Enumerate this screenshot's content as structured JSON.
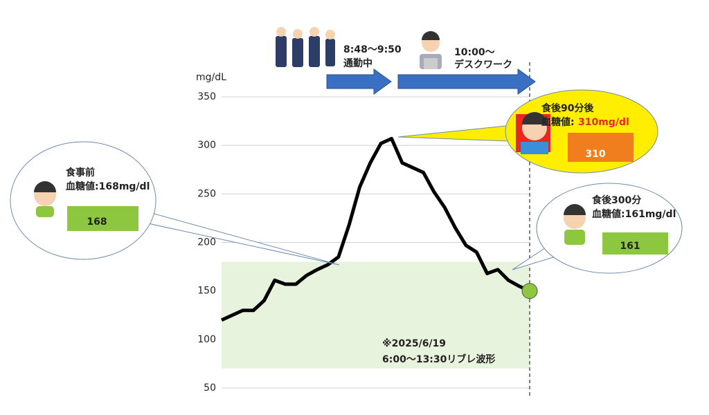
{
  "chart_data": {
    "type": "line",
    "y_label": "mg/dL",
    "categories": [
      null,
      null,
      null,
      null,
      null,
      null,
      null,
      null,
      null,
      null,
      null,
      null,
      null,
      null,
      null,
      null,
      null,
      null,
      null,
      null,
      null,
      null,
      null,
      null,
      null,
      null,
      null,
      null,
      null,
      null
    ],
    "values": [
      120,
      125,
      130,
      130,
      140,
      161,
      157,
      157,
      166,
      172,
      177,
      185,
      218,
      257,
      282,
      302,
      307,
      282,
      277,
      272,
      252,
      236,
      215,
      197,
      190,
      168,
      172,
      161,
      155,
      150
    ],
    "color": "#000000",
    "ylim": [
      50,
      350
    ],
    "yticks": [
      50,
      100,
      150,
      200,
      250,
      300,
      350
    ],
    "grid": true,
    "target_range": [
      70,
      180
    ],
    "target_color": "#e8f3dd",
    "end_marker_color": "#8dc63f",
    "note": [
      "※2025/6/19",
      "6:00～13:30リブレ波形"
    ],
    "timeline": [
      {
        "time": "8:48～9:50",
        "label": "通勤中"
      },
      {
        "time": "10:00～",
        "label": "デスクワーク"
      }
    ],
    "callouts": [
      {
        "title": "食事前",
        "text": "血糖値:168mg/dl",
        "reading": "168"
      },
      {
        "title": "食後90分後",
        "text": "血糖値:",
        "highlight": "310mg/dl",
        "reading": "310"
      },
      {
        "title": "食後300分",
        "text": "血糖値:161mg/dl",
        "reading": "161"
      }
    ]
  }
}
